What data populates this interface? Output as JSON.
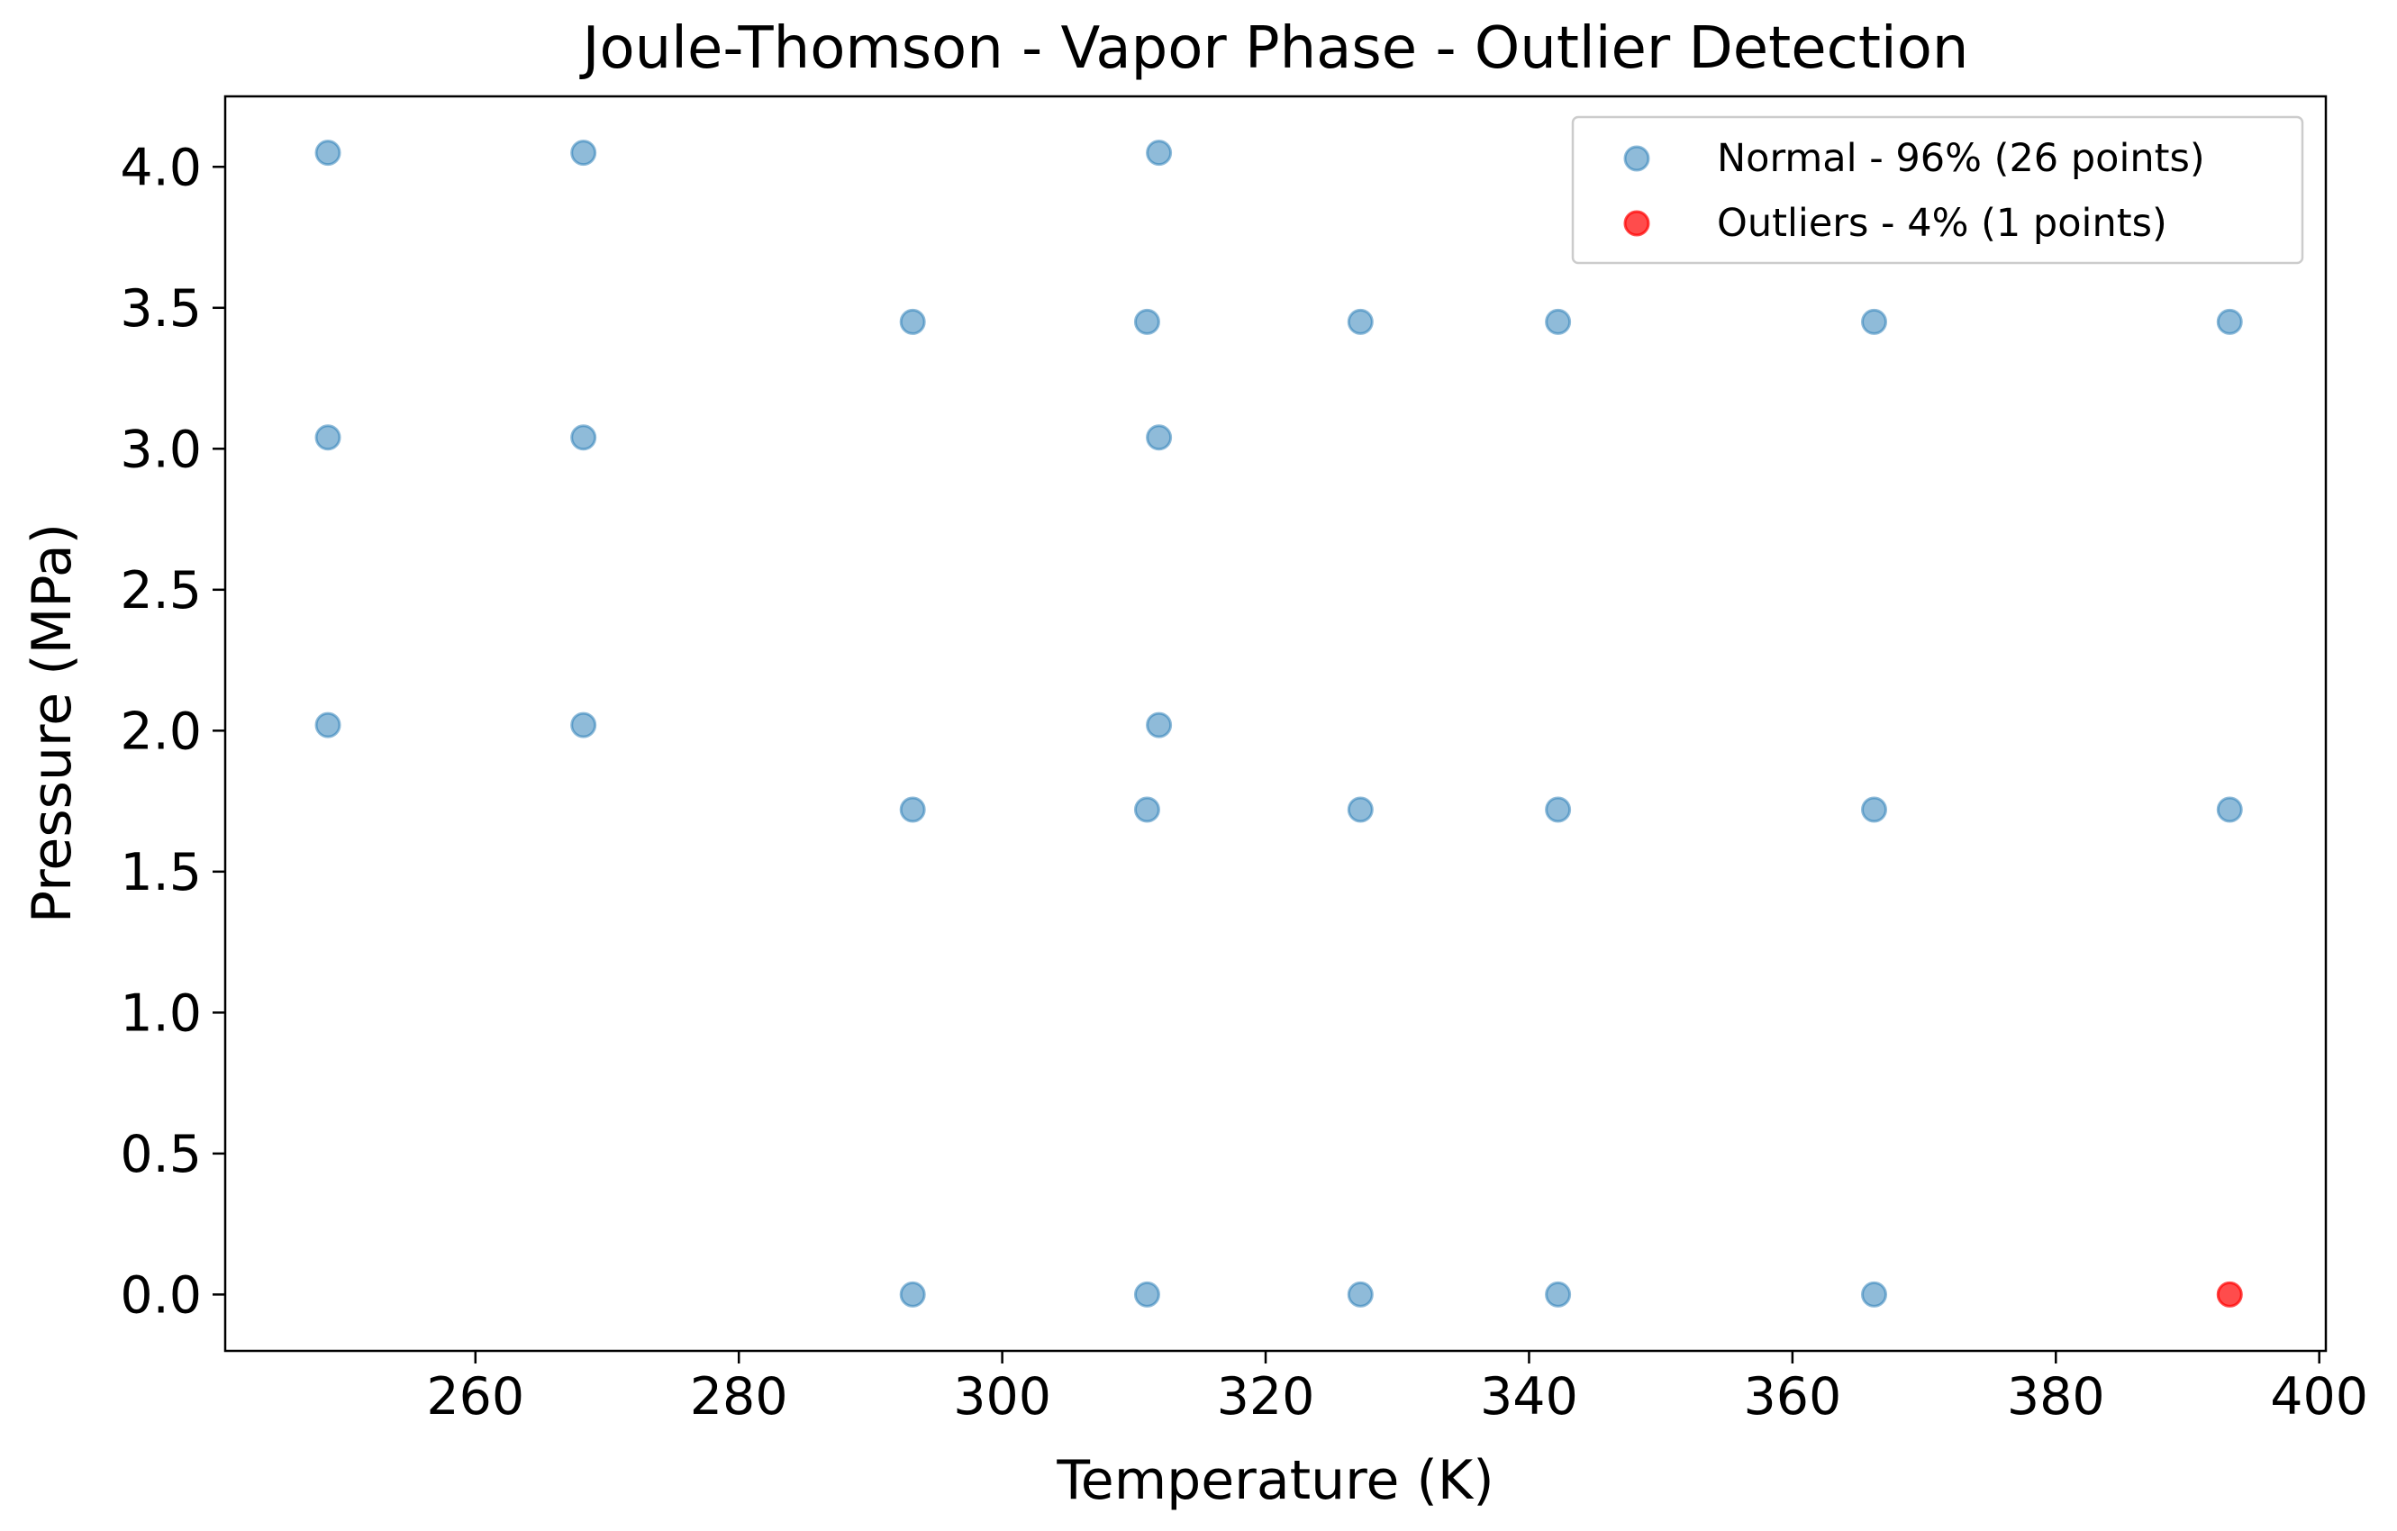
{
  "chart_data": {
    "type": "scatter",
    "title": "Joule-Thomson - Vapor Phase - Outlier Detection",
    "xlabel": "Temperature (K)",
    "ylabel": "Pressure (MPa)",
    "xlim": [
      241,
      400.5
    ],
    "ylim": [
      -0.2,
      4.25
    ],
    "xticks": [
      260,
      280,
      300,
      320,
      340,
      360,
      380,
      400
    ],
    "xtick_labels": [
      "260",
      "280",
      "300",
      "320",
      "340",
      "360",
      "380",
      "400"
    ],
    "yticks": [
      0.0,
      0.5,
      1.0,
      1.5,
      2.0,
      2.5,
      3.0,
      3.5,
      4.0
    ],
    "ytick_labels": [
      "0.0",
      "0.5",
      "1.0",
      "1.5",
      "2.0",
      "2.5",
      "3.0",
      "3.5",
      "4.0"
    ],
    "grid": false,
    "legend_position": "top-right",
    "series": [
      {
        "name": "Normal - 96% (26 points)",
        "color": "#1f77b4",
        "opacity": 0.5,
        "points": [
          {
            "x": 248.8,
            "y": 4.05
          },
          {
            "x": 268.2,
            "y": 4.05
          },
          {
            "x": 311.9,
            "y": 4.05
          },
          {
            "x": 248.8,
            "y": 3.04
          },
          {
            "x": 268.2,
            "y": 3.04
          },
          {
            "x": 311.9,
            "y": 3.04
          },
          {
            "x": 248.8,
            "y": 2.02
          },
          {
            "x": 268.2,
            "y": 2.02
          },
          {
            "x": 311.9,
            "y": 2.02
          },
          {
            "x": 293.2,
            "y": 3.45
          },
          {
            "x": 311.0,
            "y": 3.45
          },
          {
            "x": 327.2,
            "y": 3.45
          },
          {
            "x": 342.2,
            "y": 3.45
          },
          {
            "x": 366.2,
            "y": 3.45
          },
          {
            "x": 393.2,
            "y": 3.45
          },
          {
            "x": 293.2,
            "y": 1.72
          },
          {
            "x": 311.0,
            "y": 1.72
          },
          {
            "x": 327.2,
            "y": 1.72
          },
          {
            "x": 342.2,
            "y": 1.72
          },
          {
            "x": 366.2,
            "y": 1.72
          },
          {
            "x": 393.2,
            "y": 1.72
          },
          {
            "x": 293.2,
            "y": 0.0
          },
          {
            "x": 311.0,
            "y": 0.0
          },
          {
            "x": 327.2,
            "y": 0.0
          },
          {
            "x": 342.2,
            "y": 0.0
          },
          {
            "x": 366.2,
            "y": 0.0
          }
        ]
      },
      {
        "name": "Outliers - 4% (1 points)",
        "color": "#ff0000",
        "opacity": 0.7,
        "points": [
          {
            "x": 393.2,
            "y": 0.0
          }
        ]
      }
    ]
  }
}
